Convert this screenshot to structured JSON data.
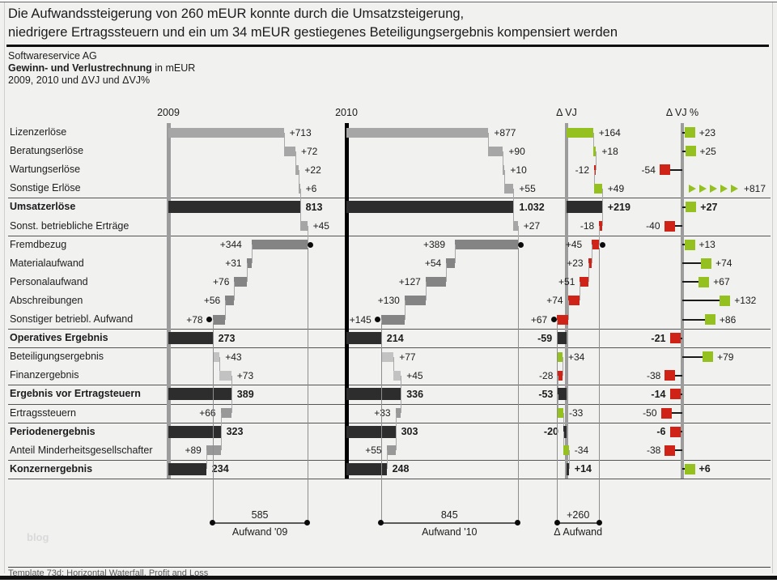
{
  "slide": {
    "title_line1": "Die Aufwandssteigerung von 260 mEUR konnte durch die Umsatzsteigerung,",
    "title_line2": "niedrigere Ertragssteuern und ein um 34 mEUR gestiegenes Beteiligungsergebnis kompensiert werden",
    "subtitle_company": "Softwareservice AG",
    "subtitle_bold": "Gewinn- und Verlustrechnung",
    "subtitle_rest": " in mEUR",
    "subtitle_period": "2009, 2010 und ΔVJ und ΔVJ%",
    "footer": "Template 73d: Horizontal Waterfall, Profit and Loss",
    "watermark": "blog"
  },
  "chart_data": {
    "type": "bar",
    "subtype": "horizontal-waterfall-profit-and-loss",
    "unit": "mEUR",
    "columns": [
      {
        "id": "y09",
        "label": "2009"
      },
      {
        "id": "y10",
        "label": "2010"
      },
      {
        "id": "dvj",
        "label": "Δ VJ"
      },
      {
        "id": "dvjp",
        "label": "Δ VJ %"
      }
    ],
    "rows": [
      {
        "label": "Lizenzerlöse",
        "bold": false,
        "kind": "add",
        "shade": "rev",
        "y09": {
          "v": 713,
          "txt": "+713"
        },
        "y10": {
          "v": 877,
          "txt": "+877"
        },
        "dvj": {
          "v": 164,
          "txt": "+164"
        },
        "dvjp": {
          "v": 23,
          "txt": "+23"
        }
      },
      {
        "label": "Beratungserlöse",
        "bold": false,
        "kind": "add",
        "shade": "rev",
        "y09": {
          "v": 72,
          "txt": "+72"
        },
        "y10": {
          "v": 90,
          "txt": "+90"
        },
        "dvj": {
          "v": 18,
          "txt": "+18"
        },
        "dvjp": {
          "v": 25,
          "txt": "+25"
        }
      },
      {
        "label": "Wartungserlöse",
        "bold": false,
        "kind": "add",
        "shade": "rev",
        "y09": {
          "v": 22,
          "txt": "+22"
        },
        "y10": {
          "v": 10,
          "txt": "+10"
        },
        "dvj": {
          "v": -12,
          "txt": "-12"
        },
        "dvjp": {
          "v": -54,
          "txt": "-54"
        }
      },
      {
        "label": "Sonstige Erlöse",
        "bold": false,
        "kind": "add",
        "shade": "rev",
        "y09": {
          "v": 6,
          "txt": "+6"
        },
        "y10": {
          "v": 55,
          "txt": "+55"
        },
        "dvj": {
          "v": 49,
          "txt": "+49"
        },
        "dvjp": {
          "v": 817,
          "txt": "+817",
          "off": true
        }
      },
      {
        "label": "Umsatzerlöse",
        "bold": true,
        "kind": "total",
        "shade": "total",
        "y09": {
          "v": 813,
          "txt": "813"
        },
        "y10": {
          "v": 1032,
          "txt": "1.032"
        },
        "dvj": {
          "v": 219,
          "txt": "+219"
        },
        "dvjp": {
          "v": 27,
          "txt": "+27"
        }
      },
      {
        "label": "Sonst. betriebliche Erträge",
        "bold": false,
        "kind": "add",
        "shade": "rev",
        "y09": {
          "v": 45,
          "txt": "+45"
        },
        "y10": {
          "v": 27,
          "txt": "+27"
        },
        "dvj": {
          "v": -18,
          "txt": "-18"
        },
        "dvjp": {
          "v": -40,
          "txt": "-40"
        }
      },
      {
        "label": "Fremdbezug",
        "bold": false,
        "kind": "sub",
        "shade": "exp",
        "dot": "start",
        "y09": {
          "v": 344,
          "txt": "+344"
        },
        "y10": {
          "v": 389,
          "txt": "+389"
        },
        "dvj": {
          "v": 45,
          "txt": "+45"
        },
        "dvjp": {
          "v": 13,
          "txt": "+13"
        }
      },
      {
        "label": "Materialaufwand",
        "bold": false,
        "kind": "sub",
        "shade": "exp",
        "y09": {
          "v": 31,
          "txt": "+31"
        },
        "y10": {
          "v": 54,
          "txt": "+54"
        },
        "dvj": {
          "v": 23,
          "txt": "+23"
        },
        "dvjp": {
          "v": 74,
          "txt": "+74"
        }
      },
      {
        "label": "Personalaufwand",
        "bold": false,
        "kind": "sub",
        "shade": "exp",
        "y09": {
          "v": 76,
          "txt": "+76"
        },
        "y10": {
          "v": 127,
          "txt": "+127"
        },
        "dvj": {
          "v": 51,
          "txt": "+51"
        },
        "dvjp": {
          "v": 67,
          "txt": "+67"
        }
      },
      {
        "label": "Abschreibungen",
        "bold": false,
        "kind": "sub",
        "shade": "exp",
        "y09": {
          "v": 56,
          "txt": "+56"
        },
        "y10": {
          "v": 130,
          "txt": "+130"
        },
        "dvj": {
          "v": 74,
          "txt": "+74"
        },
        "dvjp": {
          "v": 132,
          "txt": "+132"
        }
      },
      {
        "label": "Sonstiger betriebl. Aufwand",
        "bold": false,
        "kind": "sub",
        "shade": "exp",
        "dot": "end",
        "y09": {
          "v": 78,
          "txt": "+78"
        },
        "y10": {
          "v": 145,
          "txt": "+145"
        },
        "dvj": {
          "v": 67,
          "txt": "+67"
        },
        "dvjp": {
          "v": 86,
          "txt": "+86"
        }
      },
      {
        "label": "Operatives Ergebnis",
        "bold": true,
        "kind": "total",
        "shade": "total",
        "y09": {
          "v": 273,
          "txt": "273"
        },
        "y10": {
          "v": 214,
          "txt": "214"
        },
        "dvj": {
          "v": -59,
          "txt": "-59"
        },
        "dvjp": {
          "v": -21,
          "txt": "-21"
        }
      },
      {
        "label": "Beteiligungsergebnis",
        "bold": false,
        "kind": "add",
        "shade": "net",
        "y09": {
          "v": 43,
          "txt": "+43"
        },
        "y10": {
          "v": 77,
          "txt": "+77"
        },
        "dvj": {
          "v": 34,
          "txt": "+34"
        },
        "dvjp": {
          "v": 79,
          "txt": "+79"
        }
      },
      {
        "label": "Finanzergebnis",
        "bold": false,
        "kind": "add",
        "shade": "net",
        "y09": {
          "v": 73,
          "txt": "+73"
        },
        "y10": {
          "v": 45,
          "txt": "+45"
        },
        "dvj": {
          "v": -28,
          "txt": "-28"
        },
        "dvjp": {
          "v": -38,
          "txt": "-38"
        }
      },
      {
        "label": "Ergebnis vor Ertragsteuern",
        "bold": true,
        "kind": "total",
        "shade": "total",
        "y09": {
          "v": 389,
          "txt": "389"
        },
        "y10": {
          "v": 336,
          "txt": "336"
        },
        "dvj": {
          "v": -53,
          "txt": "-53"
        },
        "dvjp": {
          "v": -14,
          "txt": "-14"
        }
      },
      {
        "label": "Ertragssteuern",
        "bold": false,
        "kind": "sub",
        "shade": "tax",
        "y09": {
          "v": 66,
          "txt": "+66"
        },
        "y10": {
          "v": 33,
          "txt": "+33"
        },
        "dvj": {
          "v": -33,
          "txt": "-33"
        },
        "dvjp": {
          "v": -50,
          "txt": "-50"
        }
      },
      {
        "label": "Periodenergebnis",
        "bold": true,
        "kind": "total",
        "shade": "total",
        "y09": {
          "v": 323,
          "txt": "323"
        },
        "y10": {
          "v": 303,
          "txt": "303"
        },
        "dvj": {
          "v": -20,
          "txt": "-20"
        },
        "dvjp": {
          "v": -6,
          "txt": "-6"
        }
      },
      {
        "label": "Anteil Minderheitsgesellschafter",
        "bold": false,
        "kind": "sub",
        "shade": "tax",
        "y09": {
          "v": 89,
          "txt": "+89"
        },
        "y10": {
          "v": 55,
          "txt": "+55"
        },
        "dvj": {
          "v": -34,
          "txt": "-34"
        },
        "dvjp": {
          "v": -38,
          "txt": "-38"
        }
      },
      {
        "label": "Konzernergebnis",
        "bold": true,
        "kind": "total",
        "shade": "total",
        "y09": {
          "v": 234,
          "txt": "234"
        },
        "y10": {
          "v": 248,
          "txt": "248"
        },
        "dvj": {
          "v": 14,
          "txt": "+14"
        },
        "dvjp": {
          "v": 6,
          "txt": "+6"
        }
      }
    ],
    "brackets": [
      {
        "col": "y09",
        "value": "585",
        "name": "Aufwand '09"
      },
      {
        "col": "y10",
        "value": "845",
        "name": "Aufwand '10"
      },
      {
        "col": "dvj",
        "value": "+260",
        "name": "Δ Aufwand"
      }
    ],
    "colors": {
      "good_green": "#94c11f",
      "bad_red": "#cf2318",
      "total_dark": "#2d2d2d",
      "revenue_gray": "#a6a6a6",
      "expense_gray": "#848484",
      "net_light_gray": "#c2c2c2",
      "tax_gray": "#989898",
      "axis_2009": "#9c9c9c",
      "axis_2010": "#000000",
      "axis_delta": "#9c9c9c"
    }
  }
}
